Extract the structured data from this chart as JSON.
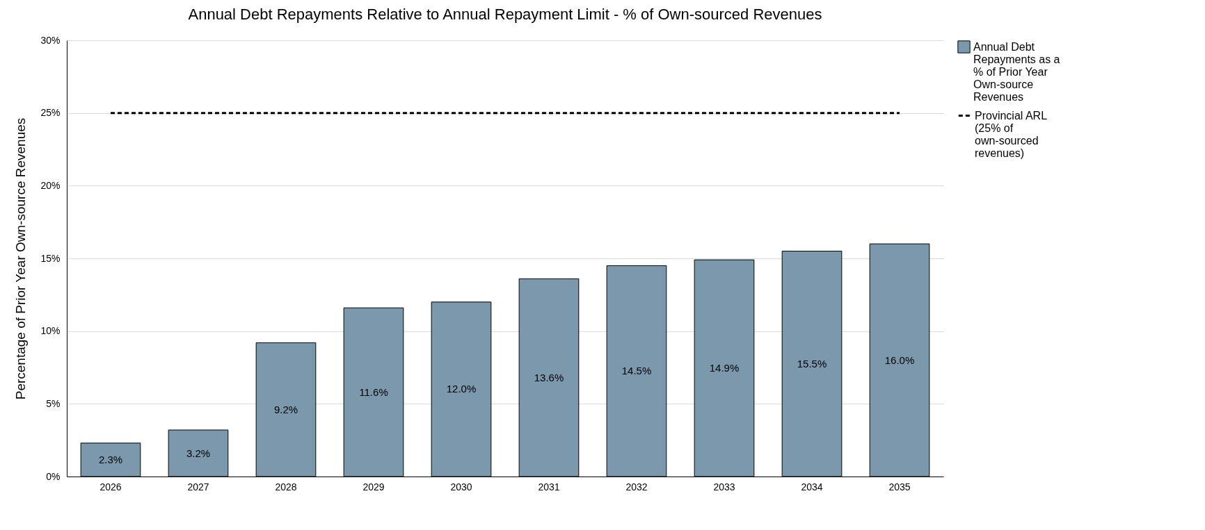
{
  "chart_data": {
    "type": "bar",
    "title": "Annual Debt Repayments Relative to Annual  Repayment Limit - % of Own-sourced Revenues",
    "ylabel": "Percentage of Prior Year Own-source  Revenues",
    "categories": [
      "2026",
      "2027",
      "2028",
      "2029",
      "2030",
      "2031",
      "2032",
      "2033",
      "2034",
      "2035"
    ],
    "series": [
      {
        "name": "Annual Debt Repayments as a % of Prior Year Own-source Revenues",
        "color": "#7b98ad",
        "values": [
          2.3,
          3.2,
          9.2,
          11.6,
          12.0,
          13.6,
          14.5,
          14.9,
          15.5,
          16.0
        ],
        "value_labels": [
          "2.3%",
          "3.2%",
          "9.2%",
          "11.6%",
          "12.0%",
          "13.6%",
          "14.5%",
          "14.9%",
          "15.5%",
          "16.0%"
        ]
      },
      {
        "name": "Provincial ARL (25% of own-sourced revenues)",
        "type": "line",
        "color": "#000000",
        "line_style": "dashed",
        "values": [
          25,
          25,
          25,
          25,
          25,
          25,
          25,
          25,
          25,
          25
        ]
      }
    ],
    "ylim": [
      0,
      30
    ],
    "yticks": [
      {
        "value": 0,
        "label": "0%"
      },
      {
        "value": 5,
        "label": "5%"
      },
      {
        "value": 10,
        "label": "10%"
      },
      {
        "value": 15,
        "label": "15%"
      },
      {
        "value": 20,
        "label": "20%"
      },
      {
        "value": 25,
        "label": "25%"
      },
      {
        "value": 30,
        "label": "30%"
      }
    ],
    "grid": "y",
    "legend": "right"
  }
}
